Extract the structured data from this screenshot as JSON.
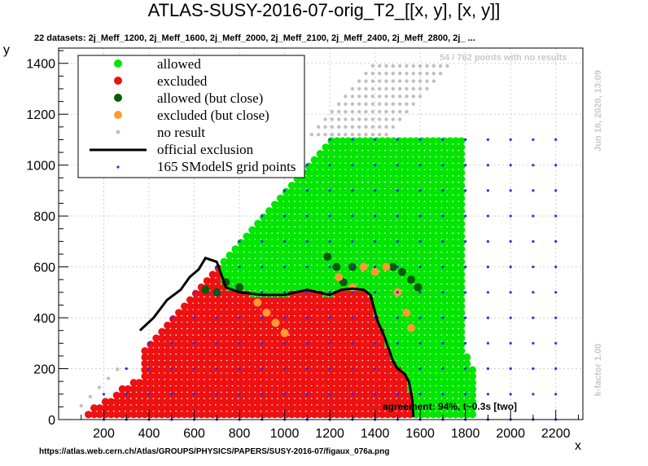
{
  "header": {
    "title": "ATLAS-SUSY-2016-07-orig_T2_[[x, y], [x, y]]",
    "subtitle": "22 datasets: 2j_Meff_1200, 2j_Meff_1600, 2j_Meff_2000, 2j_Meff_2100, 2j_Meff_2400, 2j_Meff_2800, 2j_ ...",
    "no_result_note": "54 / 762 points with no results",
    "side_date": "Jun 16, 2020, 13:09",
    "side_kfactor": "k-factor 1.00",
    "agreement": "agreement: 94%, t~0.3s [two]",
    "source_url": "https://atlas.web.cern.ch/Atlas/GROUPS/PHYSICS/PAPERS/SUSY-2016-07/figaux_076a.png"
  },
  "colors": {
    "allowed": "#00e600",
    "excluded": "#ee1111",
    "allowed_close": "#0a5a0a",
    "excluded_close": "#ff9933",
    "no_result": "#c0c0c0",
    "grid_point": "#1e32ff",
    "official": "#000000"
  },
  "chart_data": {
    "type": "scatter",
    "title": "ATLAS-SUSY-2016-07-orig_T2_[[x, y], [x, y]]",
    "xlabel": "x",
    "ylabel": "y",
    "xlim": [
      0,
      2320
    ],
    "ylim": [
      0,
      1460
    ],
    "xticks": [
      200,
      400,
      600,
      800,
      1000,
      1200,
      1400,
      1600,
      1800,
      2000,
      2200
    ],
    "yticks": [
      0,
      200,
      400,
      600,
      800,
      1000,
      1200,
      1400
    ],
    "grid": true,
    "legend": {
      "placement": "top-left",
      "entries": [
        {
          "label": "allowed",
          "key": "allowed"
        },
        {
          "label": "excluded",
          "key": "excluded"
        },
        {
          "label": "allowed (but close)",
          "key": "allowed_close"
        },
        {
          "label": "excluded (but close)",
          "key": "excluded_close"
        },
        {
          "label": "no result",
          "key": "no_result"
        },
        {
          "label": "official exclusion",
          "key": "official"
        },
        {
          "label": "165 SModelS grid points",
          "key": "grid_point"
        }
      ]
    },
    "official_exclusion": {
      "x": [
        360,
        420,
        480,
        540,
        580,
        620,
        650,
        700,
        740,
        800,
        900,
        1000,
        1100,
        1200,
        1250,
        1300,
        1350,
        1380,
        1410,
        1440,
        1460,
        1480,
        1500,
        1530,
        1550,
        1565,
        1570
      ],
      "y": [
        350,
        400,
        470,
        510,
        560,
        590,
        635,
        620,
        520,
        500,
        490,
        490,
        510,
        490,
        510,
        515,
        510,
        490,
        390,
        330,
        280,
        230,
        200,
        180,
        150,
        80,
        10
      ]
    },
    "allowed_close_points": {
      "x": [
        650,
        700,
        740,
        800,
        1190,
        1230,
        1260,
        1300,
        1480,
        1520,
        1560,
        1590
      ],
      "y": [
        510,
        500,
        540,
        520,
        640,
        600,
        540,
        600,
        600,
        580,
        550,
        520
      ]
    },
    "excluded_close_points": {
      "x": [
        880,
        920,
        960,
        1000,
        1240,
        1300,
        1350,
        1400,
        1450,
        1500,
        1540,
        1560
      ],
      "y": [
        460,
        420,
        380,
        340,
        560,
        520,
        600,
        580,
        600,
        500,
        420,
        360
      ]
    },
    "grid_x": [
      200,
      300,
      400,
      500,
      600,
      700,
      800,
      900,
      1000,
      1100,
      1200,
      1300,
      1400,
      1500,
      1600,
      1700,
      1800,
      1900,
      2000,
      2100,
      2200
    ],
    "grid_step_y": 100,
    "grid_y_max": 1100
  }
}
